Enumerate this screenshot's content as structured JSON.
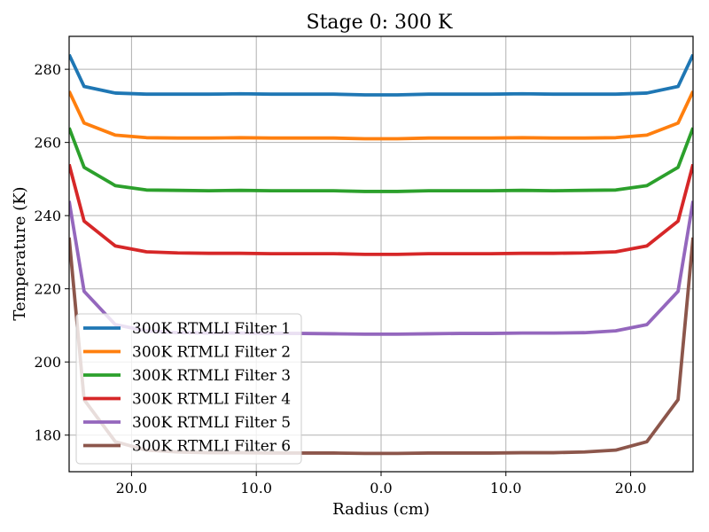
{
  "chart_data": {
    "type": "line",
    "title": "Stage 0: 300 K",
    "xlabel": "Radius (cm)",
    "ylabel": "Temperature (K)",
    "xlim": [
      -25,
      25
    ],
    "ylim": [
      170,
      289
    ],
    "x_ticks": [
      {
        "value": -20,
        "label": "20.0"
      },
      {
        "value": -10,
        "label": "10.0"
      },
      {
        "value": 0,
        "label": "0.0"
      },
      {
        "value": 10,
        "label": "10.0"
      },
      {
        "value": 20,
        "label": "20.0"
      }
    ],
    "y_ticks": [
      180,
      200,
      220,
      240,
      260,
      280
    ],
    "grid": true,
    "legend_position": "lower-left",
    "x": [
      -25,
      -23.8,
      -21.3,
      -18.8,
      -16.3,
      -13.8,
      -11.3,
      -8.8,
      -6.3,
      -3.8,
      -1.3,
      1.3,
      3.8,
      6.3,
      8.8,
      11.3,
      13.8,
      16.3,
      18.8,
      21.3,
      23.8,
      25
    ],
    "series": [
      {
        "name": "300K RTMLI Filter 1",
        "color": "#1f77b4",
        "values": [
          284,
          275.3,
          273.5,
          273.2,
          273.2,
          273.2,
          273.3,
          273.2,
          273.2,
          273.2,
          273.0,
          273.0,
          273.2,
          273.2,
          273.2,
          273.3,
          273.2,
          273.2,
          273.2,
          273.5,
          275.3,
          284
        ]
      },
      {
        "name": "300K RTMLI Filter 2",
        "color": "#ff7f0e",
        "values": [
          274,
          265.3,
          262.0,
          261.3,
          261.2,
          261.2,
          261.3,
          261.2,
          261.2,
          261.2,
          261.0,
          261.0,
          261.2,
          261.2,
          261.2,
          261.3,
          261.2,
          261.2,
          261.3,
          262.0,
          265.3,
          274
        ]
      },
      {
        "name": "300K RTMLI Filter 3",
        "color": "#2ca02c",
        "values": [
          264,
          253.2,
          248.2,
          247.0,
          246.9,
          246.8,
          246.9,
          246.8,
          246.8,
          246.8,
          246.6,
          246.6,
          246.8,
          246.8,
          246.8,
          246.9,
          246.8,
          246.9,
          247.0,
          248.2,
          253.2,
          264
        ]
      },
      {
        "name": "300K RTMLI Filter 4",
        "color": "#d62728",
        "values": [
          254,
          238.5,
          231.7,
          230.1,
          229.8,
          229.7,
          229.7,
          229.6,
          229.6,
          229.6,
          229.4,
          229.4,
          229.6,
          229.6,
          229.6,
          229.7,
          229.7,
          229.8,
          230.1,
          231.7,
          238.5,
          254
        ]
      },
      {
        "name": "300K RTMLI Filter 5",
        "color": "#9467bd",
        "values": [
          244,
          219.3,
          210.2,
          208.5,
          208.0,
          207.9,
          207.9,
          207.8,
          207.8,
          207.7,
          207.6,
          207.6,
          207.7,
          207.8,
          207.8,
          207.9,
          207.9,
          208.0,
          208.5,
          210.2,
          219.3,
          244
        ]
      },
      {
        "name": "300K RTMLI Filter 6",
        "color": "#8c564b",
        "values": [
          234,
          189.7,
          178.2,
          175.9,
          175.4,
          175.2,
          175.2,
          175.1,
          175.1,
          175.1,
          175.0,
          175.0,
          175.1,
          175.1,
          175.1,
          175.2,
          175.2,
          175.4,
          175.9,
          178.2,
          189.7,
          234
        ]
      }
    ]
  }
}
